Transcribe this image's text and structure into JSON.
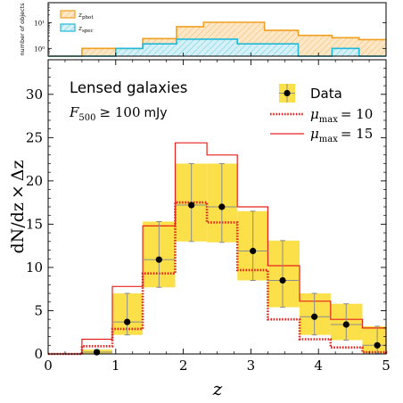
{
  "chart_data": [
    {
      "type": "step",
      "panel": "top",
      "ylabel": "number of objects",
      "yscale": "log",
      "ylim": [
        0.5,
        60
      ],
      "yticks": [
        {
          "value": 1,
          "label": "10⁰"
        },
        {
          "value": 10,
          "label": "10¹"
        }
      ],
      "xlim": [
        0,
        5
      ],
      "bin_edges": [
        0,
        0.5,
        1.0,
        1.4,
        1.9,
        2.3,
        2.8,
        3.2,
        3.7,
        4.2,
        4.6,
        5.0
      ],
      "series": [
        {
          "name": "z_phot",
          "color": "#f0a020",
          "hatch": "#f5b866",
          "fill": "#fde7c6",
          "values": [
            0,
            1,
            1,
            2.4,
            7.0,
            10.4,
            10.4,
            5.0,
            3.2,
            2.6,
            2.2
          ]
        },
        {
          "name": "z_spec",
          "color": "#22b8d8",
          "hatch": "#5fcde2",
          "fill": "#d5f1f7",
          "values": [
            0,
            0,
            1,
            1.5,
            2.3,
            2.3,
            1.5,
            1.5,
            0,
            1,
            0
          ]
        }
      ],
      "legend": {
        "placement": "upper-left",
        "items": [
          {
            "label_main": "z",
            "label_sub": "phot",
            "color": "#f0a020",
            "fill": "#fde7c6"
          },
          {
            "label_main": "z",
            "label_sub": "spec",
            "color": "#22b8d8",
            "fill": "#d5f1f7"
          }
        ]
      }
    },
    {
      "type": "step-errorbar",
      "panel": "main",
      "annotation_title": "Lensed galaxies",
      "annotation_flux": {
        "var": "F",
        "sub": "500",
        "rel": "≥ 100",
        "unit": "mJy"
      },
      "xlabel": "z",
      "ylabel": {
        "num": "dN/dz",
        "times": "×",
        "den": "Δz"
      },
      "xlim": [
        0,
        5
      ],
      "ylim": [
        0,
        34
      ],
      "xticks": [
        0,
        1,
        2,
        3,
        4,
        5
      ],
      "yticks": [
        0,
        5,
        10,
        15,
        20,
        25,
        30
      ],
      "data": {
        "name": "Data",
        "x": [
          0.72,
          1.17,
          1.64,
          2.12,
          2.57,
          3.03,
          3.47,
          3.94,
          4.41,
          4.87
        ],
        "y": [
          0.2,
          3.7,
          10.9,
          17.2,
          17.0,
          11.9,
          8.5,
          4.3,
          3.4,
          1.0
        ],
        "y_low": [
          0,
          2.2,
          7.7,
          13.0,
          12.9,
          8.5,
          5.4,
          2.2,
          1.6,
          0.1
        ],
        "y_high": [
          0.5,
          7.0,
          15.3,
          22.0,
          22.0,
          16.5,
          13.1,
          7.0,
          5.8,
          3.2
        ],
        "x_low": [
          0.5,
          0.95,
          1.4,
          1.88,
          2.35,
          2.8,
          3.25,
          3.72,
          4.18,
          4.65
        ],
        "x_high": [
          0.95,
          1.4,
          1.88,
          2.35,
          2.8,
          3.25,
          3.72,
          4.18,
          4.65,
          5.0
        ],
        "box_color": "#fce04a",
        "err_color": "#8c8c8c"
      },
      "models": [
        {
          "name": "μ_max = 10",
          "mu_label": "μ",
          "sub": "max",
          "rel": "= 10",
          "style": "dotted",
          "color": "#e8201c",
          "edges": [
            0.5,
            0.95,
            1.4,
            1.88,
            2.35,
            2.8,
            3.25,
            3.72,
            4.18,
            4.65,
            5.0
          ],
          "values": [
            0.9,
            2.9,
            9.3,
            17.5,
            15.2,
            9.7,
            4.0,
            1.7,
            0.75,
            0.2
          ]
        },
        {
          "name": "μ_max = 15",
          "mu_label": "μ",
          "sub": "max",
          "rel": "= 15",
          "style": "solid",
          "color": "#e8201c",
          "edges": [
            0.5,
            0.95,
            1.4,
            1.88,
            2.35,
            2.8,
            3.25,
            3.72,
            4.18,
            4.65,
            5.0
          ],
          "values": [
            1.7,
            7.8,
            14.8,
            24.4,
            23.0,
            17.0,
            10.2,
            6.1,
            4.0,
            3.0
          ]
        }
      ],
      "legend": {
        "placement": "upper-right",
        "data_label": "Data"
      }
    }
  ]
}
